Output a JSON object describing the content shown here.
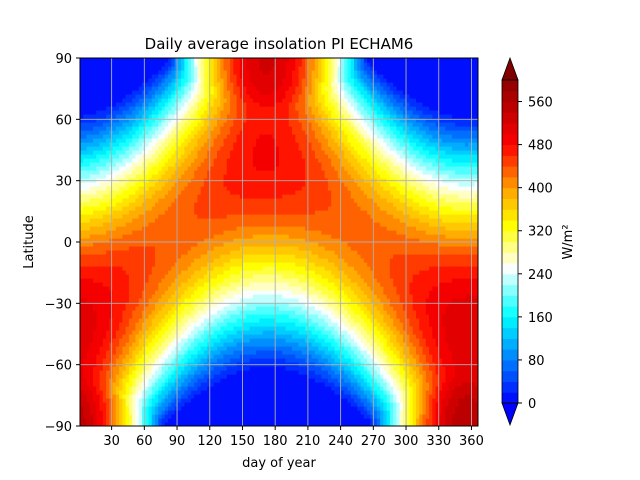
{
  "chart_data": {
    "type": "heatmap",
    "subtype": "filled-contour",
    "title": "Daily average insolation PI ECHAM6",
    "xlabel": "day of year",
    "ylabel": "Latitude",
    "xlim": [
      1,
      366
    ],
    "ylim": [
      -90,
      90
    ],
    "x_ticks": [
      30,
      60,
      90,
      120,
      150,
      180,
      210,
      240,
      270,
      300,
      330,
      360
    ],
    "y_ticks": [
      -90,
      -60,
      -30,
      0,
      30,
      60,
      90
    ],
    "y_tick_labels": [
      "−90",
      "−60",
      "−30",
      "0",
      "30",
      "60",
      "90"
    ],
    "grid": true,
    "colorbar": {
      "label": "W/m²",
      "range": [
        0,
        600
      ],
      "ticks": [
        0,
        80,
        160,
        240,
        320,
        400,
        480,
        560
      ],
      "extend": "both",
      "colormap": "blue-cyan-white-yellow-orange-red-darkred",
      "levels": 30
    },
    "features": {
      "summer_solstice_day": 172,
      "winter_solstice_day": 355,
      "polar_night_value": 0,
      "max_value_approx": 560,
      "equator_value_range": [
        380,
        440
      ]
    }
  }
}
